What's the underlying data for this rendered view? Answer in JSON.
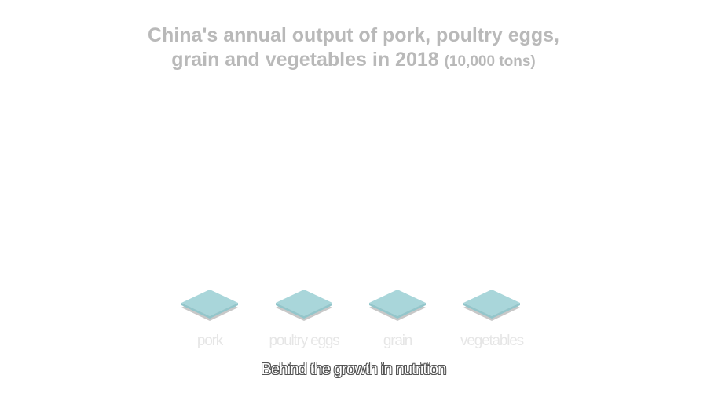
{
  "chart_data": {
    "type": "bar",
    "title_line1": "China's annual output of pork, poultry eggs,",
    "title_line2": "grain and vegetables in 2018",
    "unit": "(10,000 tons)",
    "categories": [
      "pork",
      "poultry eggs",
      "grain",
      "vegetables"
    ],
    "bar_color": "#a9d6da",
    "shadow_color": "#c8c8c8"
  },
  "subtitle": "Behind the growth in nutrition"
}
